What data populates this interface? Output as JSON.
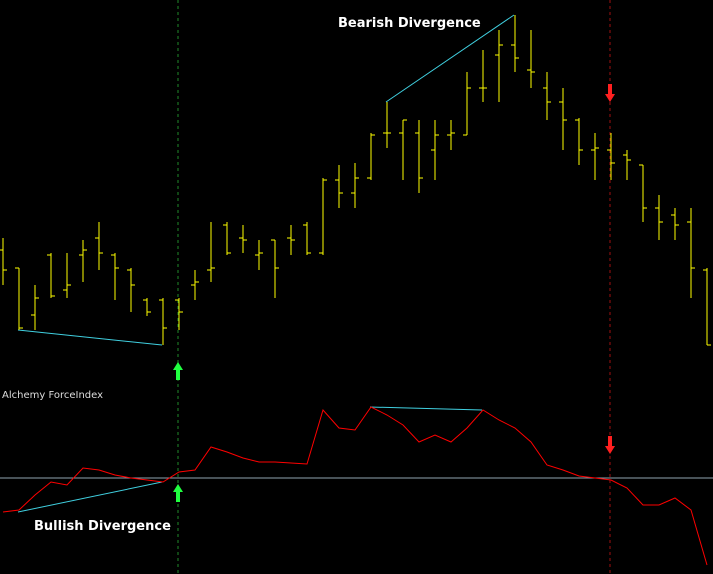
{
  "chart_data": [
    {
      "type": "ohlc",
      "color": "#ffff00",
      "ylim": [
        0,
        360
      ],
      "annotations": [
        "Bearish Divergence"
      ],
      "open": [
        110,
        92,
        45,
        105,
        70,
        105,
        122,
        105,
        90,
        60,
        60,
        60,
        75,
        90,
        135,
        122,
        105,
        120,
        122,
        135,
        107,
        180,
        167,
        182,
        227,
        227,
        227,
        210,
        225,
        225,
        272,
        305,
        315,
        290,
        272,
        258,
        240,
        210,
        210,
        205,
        195,
        152,
        145,
        138,
        90
      ],
      "high": [
        122,
        92,
        75,
        107,
        107,
        120,
        138,
        107,
        92,
        62,
        62,
        62,
        90,
        138,
        138,
        135,
        120,
        120,
        135,
        138,
        182,
        195,
        197,
        227,
        258,
        240,
        240,
        240,
        240,
        288,
        310,
        330,
        345,
        330,
        288,
        272,
        242,
        227,
        227,
        210,
        195,
        165,
        152,
        152,
        92
      ],
      "low": [
        75,
        30,
        30,
        62,
        62,
        78,
        90,
        60,
        48,
        44,
        15,
        30,
        60,
        78,
        105,
        107,
        90,
        62,
        105,
        105,
        105,
        152,
        152,
        180,
        212,
        180,
        167,
        180,
        210,
        225,
        258,
        258,
        288,
        272,
        240,
        210,
        195,
        180,
        180,
        180,
        138,
        120,
        120,
        62,
        15
      ],
      "close": [
        90,
        32,
        62,
        64,
        75,
        110,
        107,
        92,
        75,
        48,
        32,
        48,
        78,
        92,
        107,
        120,
        107,
        92,
        120,
        107,
        180,
        167,
        182,
        225,
        227,
        240,
        182,
        225,
        227,
        272,
        272,
        315,
        302,
        288,
        258,
        240,
        210,
        212,
        197,
        200,
        152,
        138,
        135,
        92,
        15
      ]
    },
    {
      "type": "line",
      "title": "Alchemy ForceIndex",
      "color": "#ff0000",
      "ylim": [
        -96,
        78
      ],
      "reference_line": 0,
      "reference_color": "#8fa3b0",
      "annotations": [
        "Bullish Divergence"
      ],
      "values": [
        -34,
        -32,
        -17,
        -4,
        -7,
        10,
        8,
        3,
        0,
        -2,
        -4,
        6,
        8,
        31,
        26,
        20,
        16,
        16,
        15,
        14,
        68,
        50,
        48,
        71,
        63,
        53,
        36,
        43,
        36,
        50,
        68,
        58,
        50,
        36,
        13,
        8,
        2,
        0,
        -2,
        -10,
        -27,
        -27,
        -20,
        -32,
        -87
      ]
    }
  ]
}
